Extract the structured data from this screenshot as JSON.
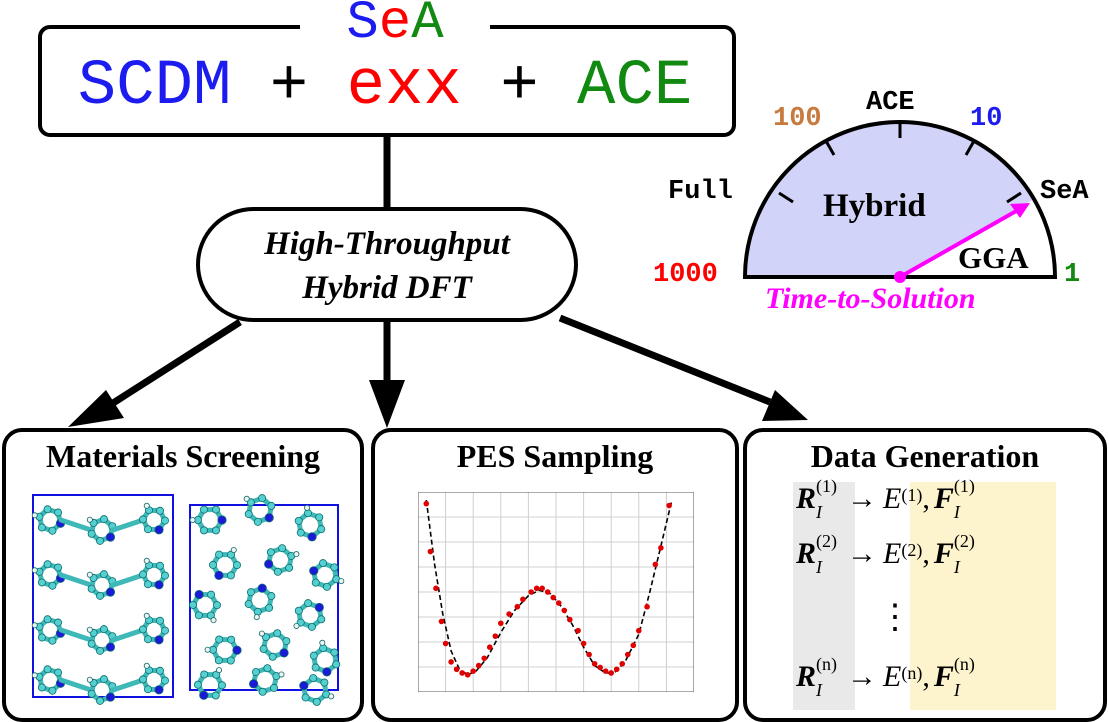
{
  "header": {
    "title_parts": [
      {
        "text": "Se",
        "color": "#1c1cf0"
      },
      {
        "text": "A",
        "color": "#128a12"
      }
    ],
    "formula": {
      "scdm": "SCDM",
      "plus1": " + ",
      "exx": "exx",
      "plus2": " + ",
      "ace": "ACE"
    }
  },
  "center": {
    "line1": "High-Throughput",
    "line2": "Hybrid DFT"
  },
  "gauge": {
    "labels": {
      "full": "Full",
      "hundred": "100",
      "ace": "ACE",
      "ten": "10",
      "sea": "SeA",
      "thousand": "1000",
      "one": "1",
      "hybrid": "Hybrid",
      "gga": "GGA"
    },
    "caption": "Time-to-Solution",
    "colors": {
      "fill": "#d2d3f8",
      "needle": "#ff00ff",
      "hundred": "#c87a3e",
      "ten": "#1c1cf0",
      "thousand": "#ff0000",
      "one": "#128a12"
    }
  },
  "panels": {
    "materials": {
      "title": "Materials Screening"
    },
    "pes": {
      "title": "PES Sampling"
    },
    "data": {
      "title": "Data Generation"
    }
  },
  "data_generation": {
    "rows": [
      {
        "r": "R",
        "r_sup": "(1)",
        "arrow": "→",
        "e": "E",
        "e_sup": "(1)",
        "comma": ",",
        "f": "F",
        "f_sup": "(1)",
        "sub": "I"
      },
      {
        "r": "R",
        "r_sup": "(2)",
        "arrow": "→",
        "e": "E",
        "e_sup": "(2)",
        "comma": ",",
        "f": "F",
        "f_sup": "(2)",
        "sub": "I"
      },
      {
        "r": "R",
        "r_sup": "(n)",
        "arrow": "→",
        "e": "E",
        "e_sup": "(n)",
        "comma": ",",
        "f": "F",
        "f_sup": "(n)",
        "sub": "I"
      }
    ],
    "ellipsis": "⋮"
  },
  "chart_data": {
    "type": "scatter",
    "title": "",
    "xlabel": "",
    "ylabel": "",
    "xlim": [
      0,
      1
    ],
    "ylim": [
      0,
      1
    ],
    "grid": true,
    "points": [
      [
        0.03,
        0.98
      ],
      [
        0.045,
        0.72
      ],
      [
        0.065,
        0.52
      ],
      [
        0.085,
        0.34
      ],
      [
        0.1,
        0.22
      ],
      [
        0.12,
        0.12
      ],
      [
        0.14,
        0.08
      ],
      [
        0.16,
        0.06
      ],
      [
        0.18,
        0.05
      ],
      [
        0.2,
        0.07
      ],
      [
        0.22,
        0.1
      ],
      [
        0.24,
        0.14
      ],
      [
        0.26,
        0.2
      ],
      [
        0.28,
        0.26
      ],
      [
        0.3,
        0.33
      ],
      [
        0.33,
        0.38
      ],
      [
        0.36,
        0.42
      ],
      [
        0.38,
        0.46
      ],
      [
        0.41,
        0.5
      ],
      [
        0.43,
        0.52
      ],
      [
        0.45,
        0.52
      ],
      [
        0.47,
        0.5
      ],
      [
        0.49,
        0.47
      ],
      [
        0.51,
        0.44
      ],
      [
        0.53,
        0.4
      ],
      [
        0.55,
        0.35
      ],
      [
        0.58,
        0.29
      ],
      [
        0.6,
        0.22
      ],
      [
        0.62,
        0.16
      ],
      [
        0.64,
        0.11
      ],
      [
        0.66,
        0.09
      ],
      [
        0.68,
        0.07
      ],
      [
        0.7,
        0.06
      ],
      [
        0.72,
        0.08
      ],
      [
        0.74,
        0.11
      ],
      [
        0.76,
        0.16
      ],
      [
        0.78,
        0.21
      ],
      [
        0.8,
        0.29
      ],
      [
        0.83,
        0.42
      ],
      [
        0.86,
        0.65
      ],
      [
        0.88,
        0.74
      ],
      [
        0.91,
        0.97
      ]
    ],
    "curve": [
      [
        0.03,
        1.0
      ],
      [
        0.06,
        0.65
      ],
      [
        0.09,
        0.38
      ],
      [
        0.12,
        0.18
      ],
      [
        0.15,
        0.08
      ],
      [
        0.18,
        0.05
      ],
      [
        0.21,
        0.07
      ],
      [
        0.25,
        0.14
      ],
      [
        0.3,
        0.28
      ],
      [
        0.35,
        0.4
      ],
      [
        0.4,
        0.48
      ],
      [
        0.44,
        0.51
      ],
      [
        0.48,
        0.49
      ],
      [
        0.52,
        0.42
      ],
      [
        0.56,
        0.32
      ],
      [
        0.6,
        0.2
      ],
      [
        0.64,
        0.1
      ],
      [
        0.68,
        0.06
      ],
      [
        0.71,
        0.06
      ],
      [
        0.75,
        0.12
      ],
      [
        0.8,
        0.27
      ],
      [
        0.84,
        0.5
      ],
      [
        0.88,
        0.75
      ],
      [
        0.92,
        1.0
      ]
    ]
  }
}
